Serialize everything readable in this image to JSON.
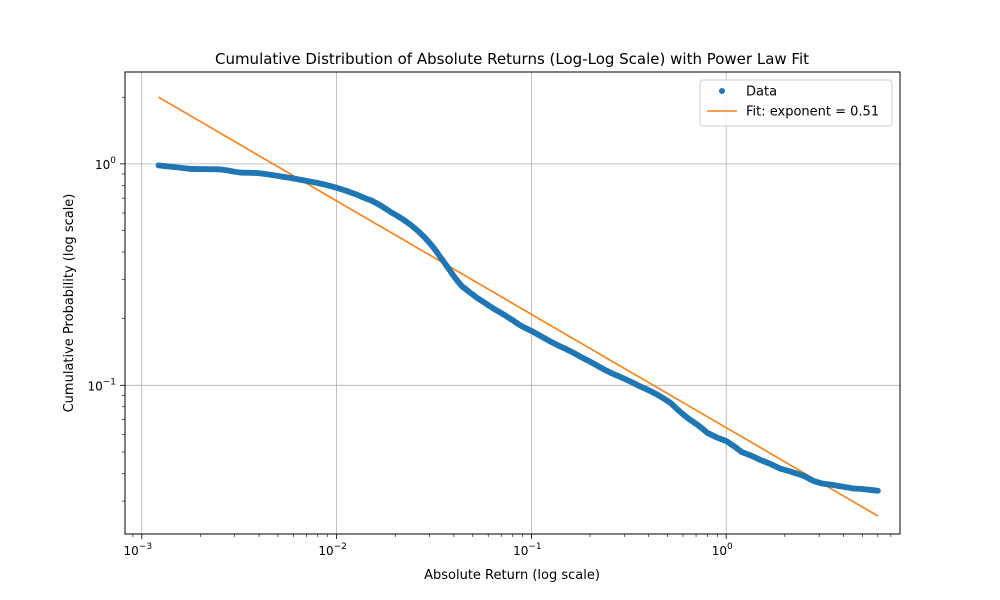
{
  "chart_data": {
    "type": "scatter",
    "title": "Cumulative Distribution of Absolute Returns (Log-Log Scale) with Power Law Fit",
    "xlabel": "Absolute Return (log scale)",
    "ylabel": "Cumulative Probability (log scale)",
    "xscale": "log",
    "yscale": "log",
    "xlim": [
      0.00082,
      7.8
    ],
    "ylim": [
      0.0213,
      2.6
    ],
    "grid": true,
    "legend_position": "top-right",
    "x_ticks": [
      {
        "value": 0.001,
        "base": "10",
        "exp": "−3"
      },
      {
        "value": 0.01,
        "base": "10",
        "exp": "−2"
      },
      {
        "value": 0.1,
        "base": "10",
        "exp": "−1"
      },
      {
        "value": 1,
        "base": "10",
        "exp": "0"
      }
    ],
    "y_ticks": [
      {
        "value": 0.1,
        "base": "10",
        "exp": "−1"
      },
      {
        "value": 1,
        "base": "10",
        "exp": "0"
      }
    ],
    "series": [
      {
        "name": "Data",
        "kind": "points",
        "color": "#1f77b4",
        "points": [
          [
            0.00122,
            0.985
          ],
          [
            0.00128,
            0.98
          ],
          [
            0.00135,
            0.975
          ],
          [
            0.00142,
            0.97
          ],
          [
            0.0015,
            0.965
          ],
          [
            0.00158,
            0.96
          ],
          [
            0.00166,
            0.955
          ],
          [
            0.00175,
            0.95
          ],
          [
            0.00182,
            0.948
          ],
          [
            0.0025,
            0.945
          ],
          [
            0.00262,
            0.94
          ],
          [
            0.00275,
            0.935
          ],
          [
            0.00287,
            0.928
          ],
          [
            0.003,
            0.922
          ],
          [
            0.0031,
            0.918
          ],
          [
            0.0032,
            0.913
          ],
          [
            0.0039,
            0.91
          ],
          [
            0.0041,
            0.905
          ],
          [
            0.0043,
            0.9
          ],
          [
            0.0045,
            0.895
          ],
          [
            0.0047,
            0.89
          ],
          [
            0.005,
            0.882
          ],
          [
            0.0053,
            0.875
          ],
          [
            0.0056,
            0.868
          ],
          [
            0.006,
            0.86
          ],
          [
            0.0065,
            0.848
          ],
          [
            0.007,
            0.838
          ],
          [
            0.0075,
            0.828
          ],
          [
            0.008,
            0.82
          ],
          [
            0.0085,
            0.81
          ],
          [
            0.009,
            0.8
          ],
          [
            0.0095,
            0.79
          ],
          [
            0.01,
            0.78
          ],
          [
            0.011,
            0.76
          ],
          [
            0.012,
            0.74
          ],
          [
            0.013,
            0.72
          ],
          [
            0.014,
            0.7
          ],
          [
            0.015,
            0.685
          ],
          [
            0.016,
            0.665
          ],
          [
            0.017,
            0.645
          ],
          [
            0.018,
            0.625
          ],
          [
            0.019,
            0.605
          ],
          [
            0.02,
            0.59
          ],
          [
            0.021,
            0.575
          ],
          [
            0.022,
            0.56
          ],
          [
            0.023,
            0.545
          ],
          [
            0.024,
            0.53
          ],
          [
            0.025,
            0.515
          ],
          [
            0.026,
            0.5
          ],
          [
            0.027,
            0.485
          ],
          [
            0.028,
            0.47
          ],
          [
            0.029,
            0.455
          ],
          [
            0.03,
            0.44
          ],
          [
            0.031,
            0.425
          ],
          [
            0.032,
            0.41
          ],
          [
            0.033,
            0.395
          ],
          [
            0.034,
            0.38
          ],
          [
            0.035,
            0.368
          ],
          [
            0.036,
            0.355
          ],
          [
            0.037,
            0.343
          ],
          [
            0.038,
            0.332
          ],
          [
            0.039,
            0.321
          ],
          [
            0.04,
            0.311
          ],
          [
            0.041,
            0.302
          ],
          [
            0.042,
            0.294
          ],
          [
            0.043,
            0.287
          ],
          [
            0.044,
            0.28
          ],
          [
            0.046,
            0.272
          ],
          [
            0.048,
            0.264
          ],
          [
            0.05,
            0.257
          ],
          [
            0.052,
            0.25
          ],
          [
            0.055,
            0.242
          ],
          [
            0.058,
            0.235
          ],
          [
            0.061,
            0.228
          ],
          [
            0.065,
            0.22
          ],
          [
            0.07,
            0.212
          ],
          [
            0.075,
            0.204
          ],
          [
            0.08,
            0.197
          ],
          [
            0.085,
            0.19
          ],
          [
            0.09,
            0.184
          ],
          [
            0.1,
            0.176
          ],
          [
            0.11,
            0.168
          ],
          [
            0.12,
            0.161
          ],
          [
            0.13,
            0.155
          ],
          [
            0.14,
            0.15
          ],
          [
            0.15,
            0.146
          ],
          [
            0.16,
            0.142
          ],
          [
            0.17,
            0.138
          ],
          [
            0.18,
            0.134
          ],
          [
            0.2,
            0.128
          ],
          [
            0.22,
            0.122
          ],
          [
            0.24,
            0.117
          ],
          [
            0.26,
            0.113
          ],
          [
            0.28,
            0.11
          ],
          [
            0.3,
            0.107
          ],
          [
            0.33,
            0.103
          ],
          [
            0.36,
            0.099
          ],
          [
            0.4,
            0.095
          ],
          [
            0.44,
            0.091
          ],
          [
            0.48,
            0.087
          ],
          [
            0.52,
            0.083
          ],
          [
            0.56,
            0.078
          ],
          [
            0.6,
            0.074
          ],
          [
            0.65,
            0.07
          ],
          [
            0.7,
            0.067
          ],
          [
            0.75,
            0.064
          ],
          [
            0.8,
            0.061
          ],
          [
            0.9,
            0.058
          ],
          [
            1.0,
            0.056
          ],
          [
            1.1,
            0.053
          ],
          [
            1.2,
            0.05
          ],
          [
            1.35,
            0.048
          ],
          [
            1.5,
            0.046
          ],
          [
            1.7,
            0.044
          ],
          [
            1.9,
            0.042
          ],
          [
            2.1,
            0.041
          ],
          [
            2.5,
            0.039
          ],
          [
            2.8,
            0.037
          ],
          [
            3.1,
            0.036
          ],
          [
            3.5,
            0.0355
          ],
          [
            4.0,
            0.0348
          ],
          [
            4.5,
            0.0342
          ],
          [
            5.0,
            0.034
          ],
          [
            6.0,
            0.0334
          ]
        ]
      },
      {
        "name": "Fit: exponent = 0.51",
        "kind": "line",
        "color": "#ff7f0e",
        "points": [
          [
            0.00122,
            2.0
          ],
          [
            6.0,
            0.0257
          ]
        ]
      }
    ]
  }
}
